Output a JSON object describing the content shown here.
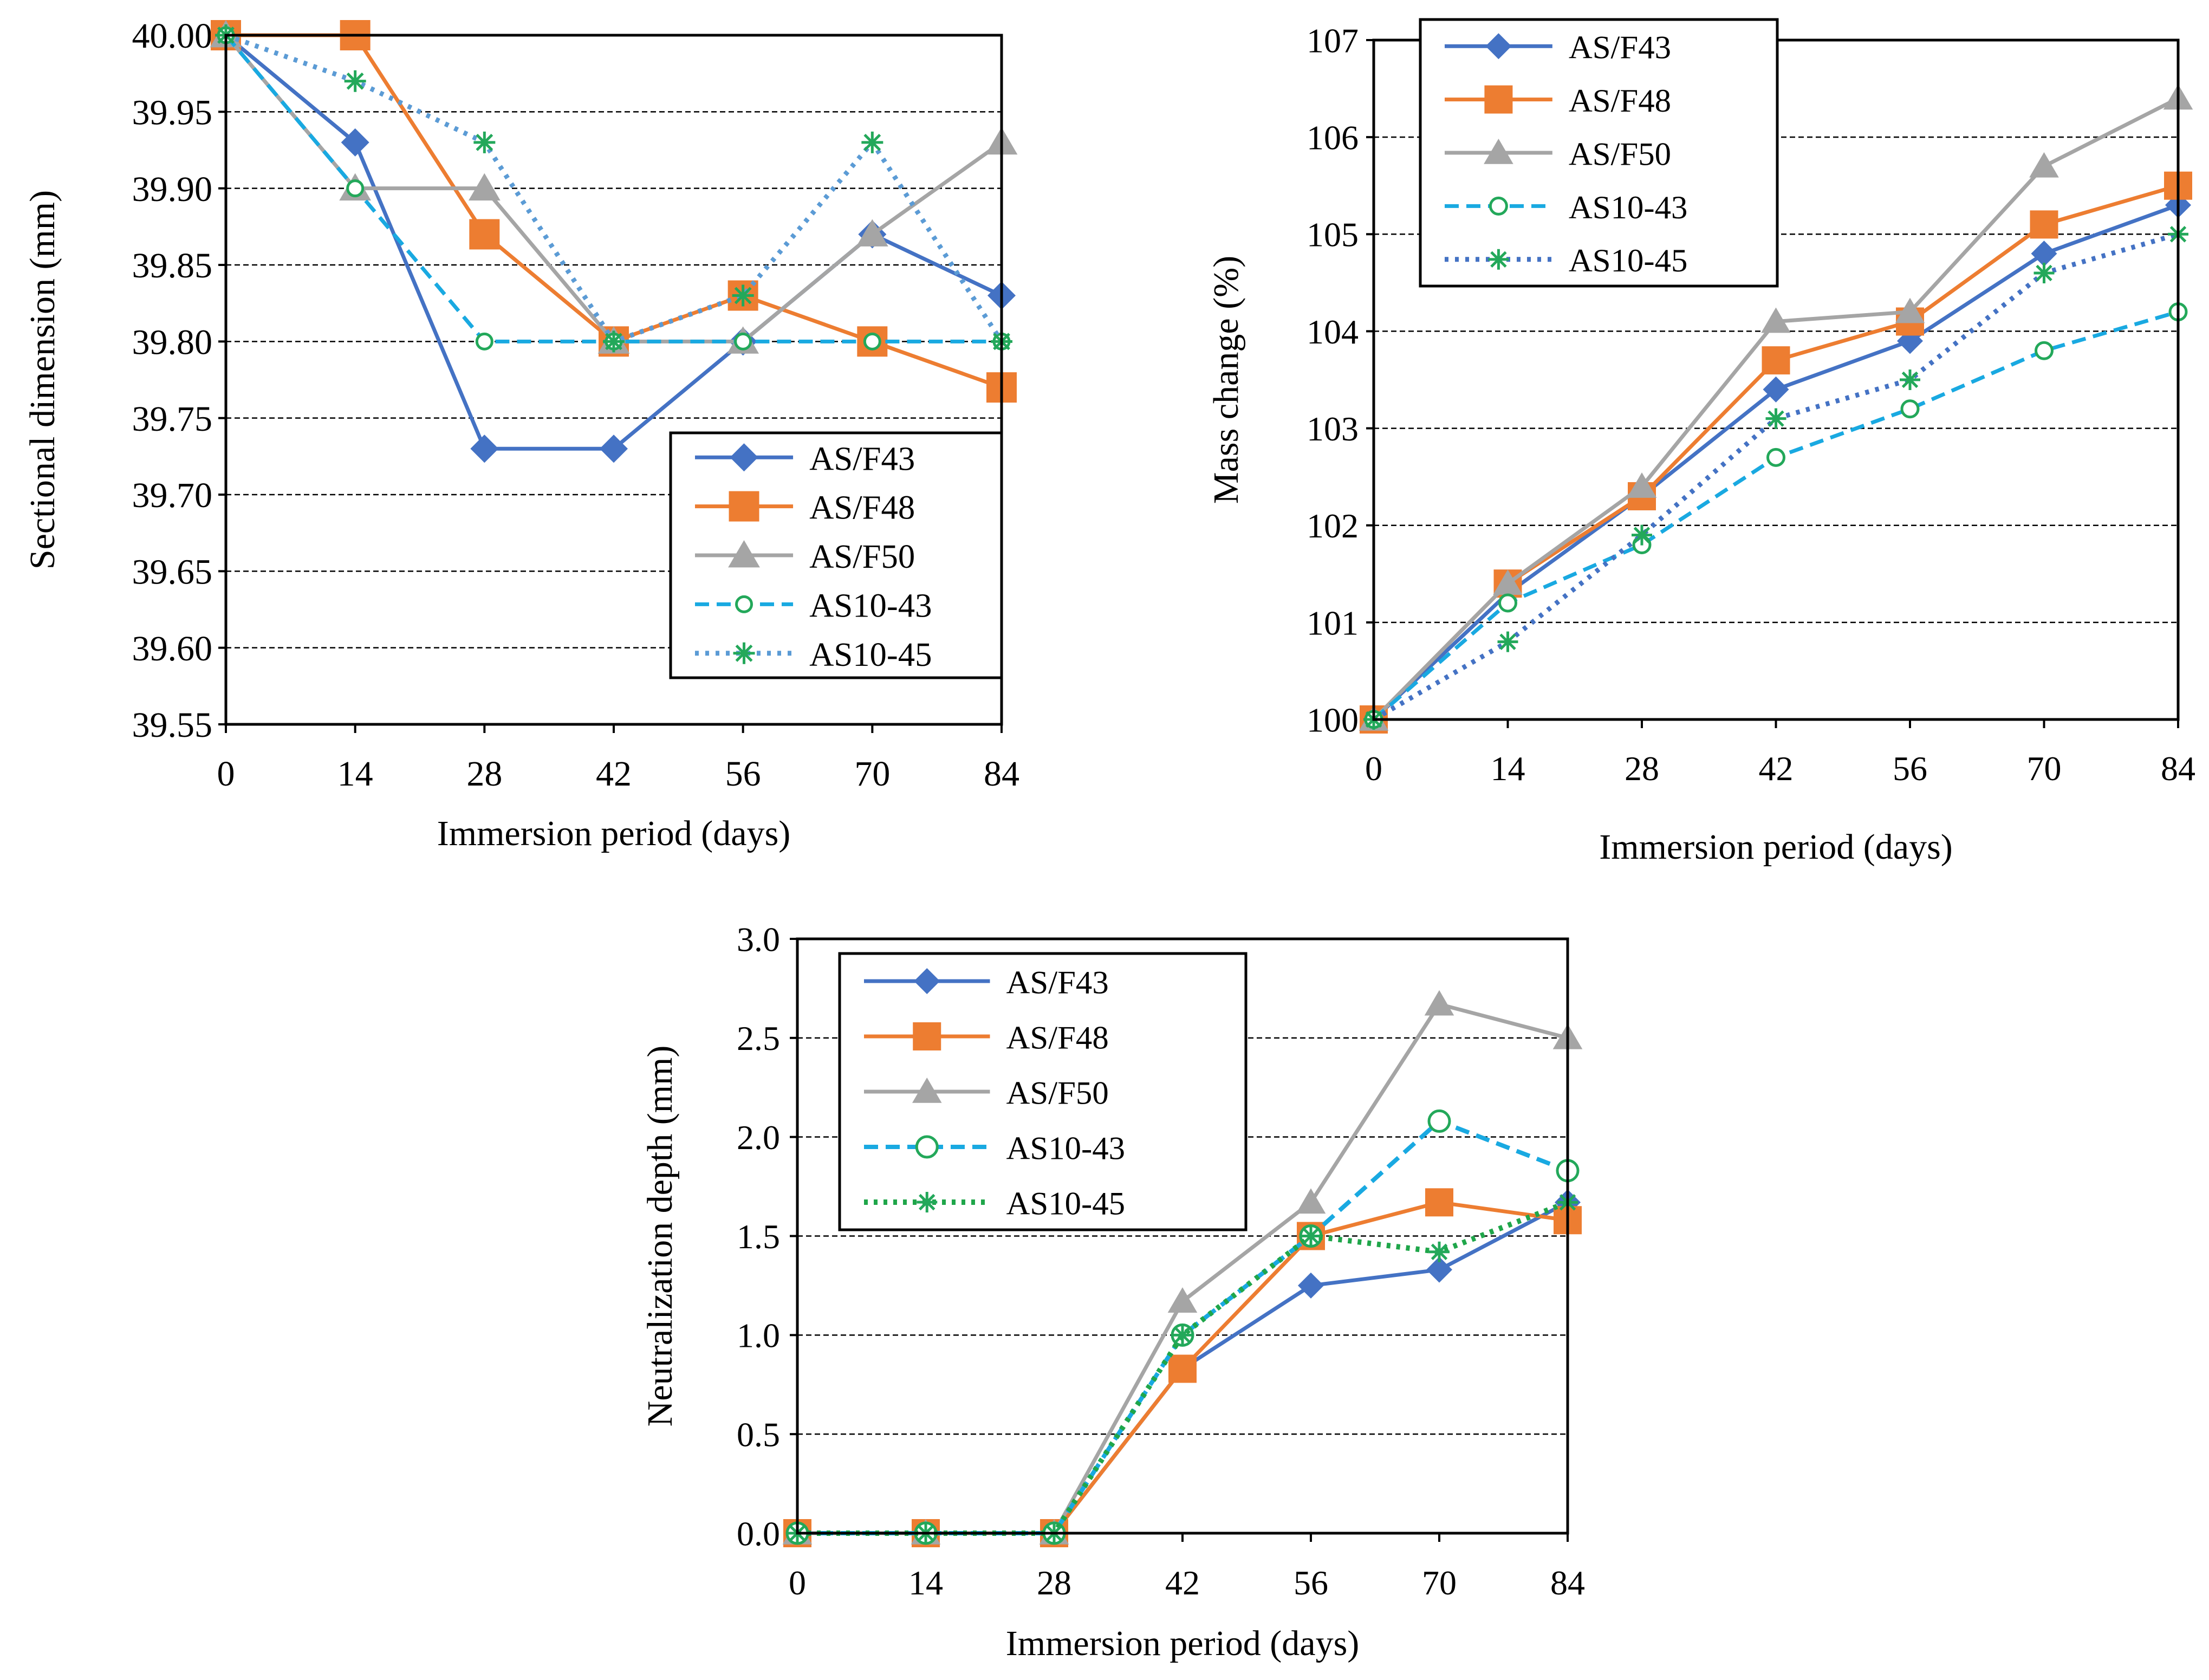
{
  "chart_data": [
    {
      "id": "sectional",
      "type": "line",
      "title": "",
      "xlabel": "Immersion period (days)",
      "ylabel": "Sectional dimension (mm)",
      "x": [
        0,
        14,
        28,
        42,
        56,
        70,
        84
      ],
      "xticks": [
        "0",
        "14",
        "28",
        "42",
        "56",
        "70",
        "84"
      ],
      "yticks": [
        "39.55",
        "39.60",
        "39.65",
        "39.70",
        "39.75",
        "39.80",
        "39.85",
        "39.90",
        "39.95",
        "40.00"
      ],
      "ylim": [
        39.55,
        40.0
      ],
      "grid": "horizontal dashed",
      "legend_position": "bottom-right",
      "series": [
        {
          "name": "AS/F43",
          "values": [
            40.0,
            39.93,
            39.73,
            39.73,
            39.8,
            39.87,
            39.83
          ]
        },
        {
          "name": "AS/F48",
          "values": [
            40.0,
            40.0,
            39.87,
            39.8,
            39.83,
            39.8,
            39.77
          ]
        },
        {
          "name": "AS/F50",
          "values": [
            40.0,
            39.9,
            39.9,
            39.8,
            39.8,
            39.87,
            39.93
          ]
        },
        {
          "name": "AS10-43",
          "values": [
            40.0,
            39.9,
            39.8,
            39.8,
            39.8,
            39.8,
            39.8
          ]
        },
        {
          "name": "AS10-45",
          "values": [
            40.0,
            39.97,
            39.93,
            39.8,
            39.83,
            39.93,
            39.8
          ]
        }
      ]
    },
    {
      "id": "mass",
      "type": "line",
      "title": "",
      "xlabel": "Immersion period (days)",
      "ylabel": "Mass change (%)",
      "x": [
        0,
        14,
        28,
        42,
        56,
        70,
        84
      ],
      "xticks": [
        "0",
        "14",
        "28",
        "42",
        "56",
        "70",
        "84"
      ],
      "yticks": [
        "100",
        "101",
        "102",
        "103",
        "104",
        "105",
        "106",
        "107"
      ],
      "ylim": [
        100,
        107
      ],
      "grid": "horizontal dashed",
      "legend_position": "top-left",
      "series": [
        {
          "name": "AS/F43",
          "values": [
            100.0,
            101.3,
            102.3,
            103.4,
            103.9,
            104.8,
            105.3
          ]
        },
        {
          "name": "AS/F48",
          "values": [
            100.0,
            101.4,
            102.3,
            103.7,
            104.1,
            105.1,
            105.5
          ]
        },
        {
          "name": "AS/F50",
          "values": [
            100.0,
            101.4,
            102.4,
            104.1,
            104.2,
            105.7,
            106.4
          ]
        },
        {
          "name": "AS10-43",
          "values": [
            100.0,
            101.2,
            101.8,
            102.7,
            103.2,
            103.8,
            104.2
          ]
        },
        {
          "name": "AS10-45",
          "values": [
            100.0,
            100.8,
            101.9,
            103.1,
            103.5,
            104.6,
            105.0
          ]
        }
      ]
    },
    {
      "id": "neutral",
      "type": "line",
      "title": "",
      "xlabel": "Immersion period (days)",
      "ylabel": "Neutralization depth (mm)",
      "x": [
        0,
        14,
        28,
        42,
        56,
        70,
        84
      ],
      "xticks": [
        "0",
        "14",
        "28",
        "42",
        "56",
        "70",
        "84"
      ],
      "yticks": [
        "0.0",
        "0.5",
        "1.0",
        "1.5",
        "2.0",
        "2.5",
        "3.0"
      ],
      "ylim": [
        0,
        3
      ],
      "grid": "horizontal dashed",
      "legend_position": "top-left",
      "series": [
        {
          "name": "AS/F43",
          "values": [
            0,
            0,
            0,
            0.83,
            1.25,
            1.33,
            1.67
          ]
        },
        {
          "name": "AS/F48",
          "values": [
            0,
            0,
            0,
            0.83,
            1.5,
            1.67,
            1.58
          ]
        },
        {
          "name": "AS/F50",
          "values": [
            0,
            0,
            0,
            1.17,
            1.67,
            2.67,
            2.5
          ]
        },
        {
          "name": "AS10-43",
          "values": [
            0,
            0,
            0,
            1.0,
            1.5,
            2.08,
            1.83
          ]
        },
        {
          "name": "AS10-45",
          "values": [
            0,
            0,
            0,
            1.0,
            1.5,
            1.42,
            1.67
          ]
        }
      ]
    }
  ],
  "colors": {
    "as_f43_line": "#4472c4",
    "as_f43_marker": "#4472c4",
    "as_f48_line": "#ed7d31",
    "as_f48_marker": "#ed7d31",
    "as_f50_line": "#a5a5a5",
    "as_f50_marker": "#a5a5a5",
    "as10_43_line": "#19a9e1",
    "as10_43_marker": "#23a85a",
    "as10_45_line_a": "#5b9bd5",
    "as10_45_line_c": "#1fa64a",
    "as10_45_marker": "#23a85a"
  }
}
